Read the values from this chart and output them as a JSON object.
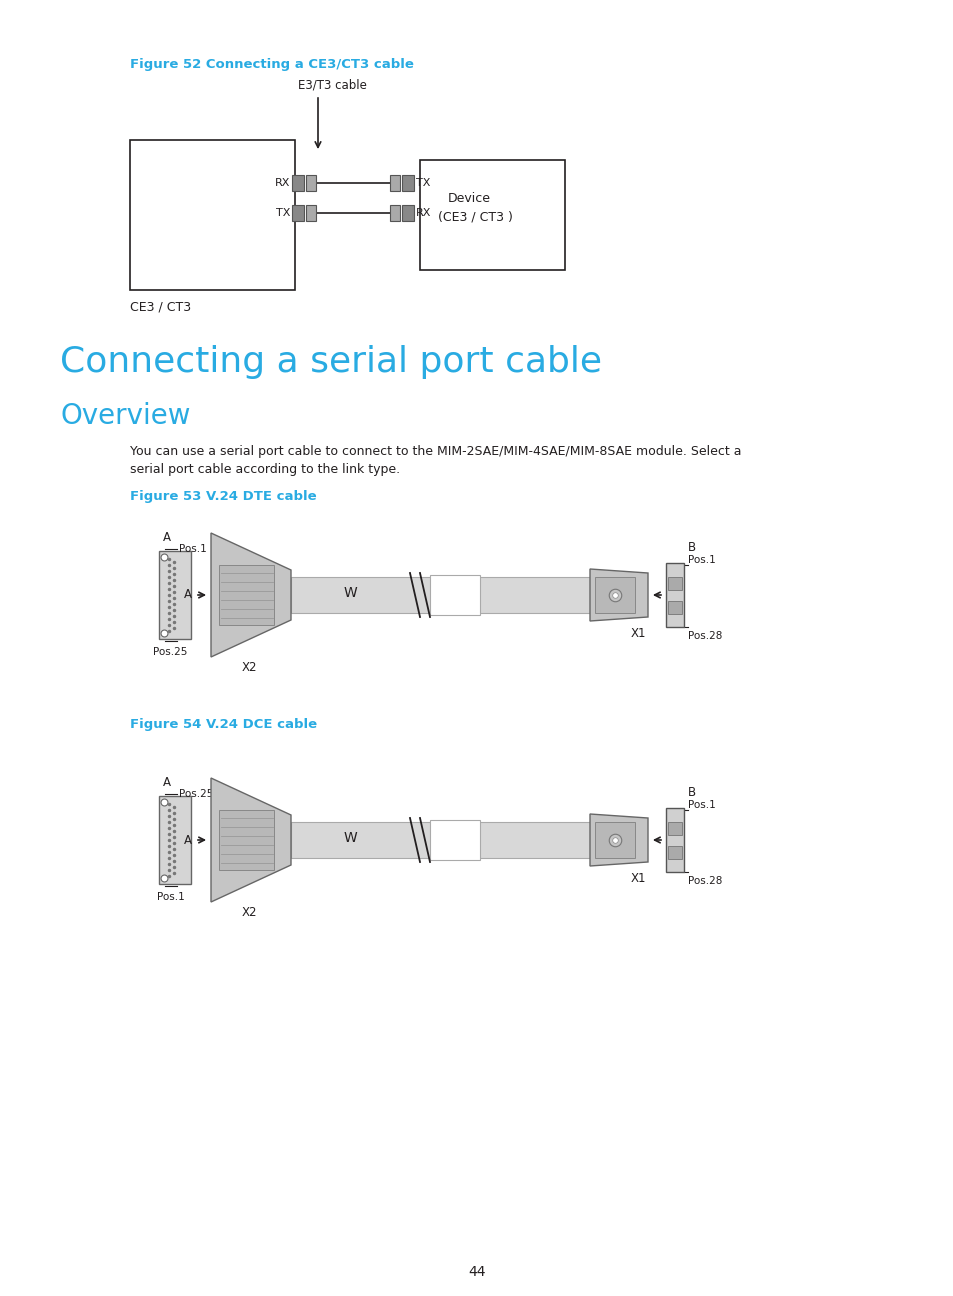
{
  "bg_color": "#ffffff",
  "cyan_color": "#29ABE2",
  "dark_color": "#231F20",
  "fig52_title": "Figure 52 Connecting a CE3/CT3 cable",
  "fig53_title": "Figure 53 V.24 DTE cable",
  "fig54_title": "Figure 54 V.24 DCE cable",
  "section_title": "Connecting a serial port cable",
  "overview_title": "Overview",
  "body_text1": "You can use a serial port cable to connect to the MIM-2SAE/MIM-4SAE/MIM-8SAE module. Select a",
  "body_text2": "serial port cable according to the link type.",
  "page_number": "44",
  "e3t3_label": "E3/T3 cable",
  "ce3ct3_label": "CE3 / CT3",
  "device_label1": "Device",
  "device_label2": "(CE3 / CT3 )"
}
